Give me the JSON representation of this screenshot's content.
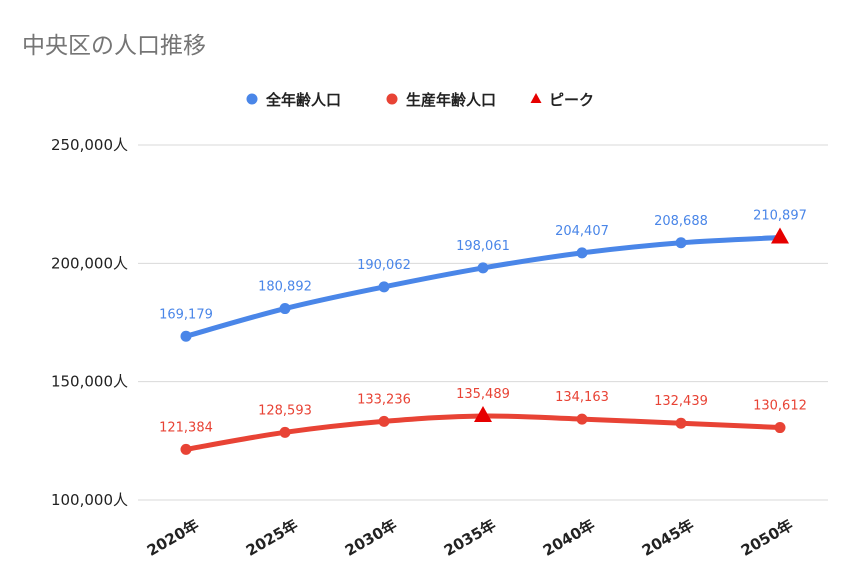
{
  "chart_data": {
    "type": "line",
    "title": "中央区の人口推移",
    "categories": [
      "2020年",
      "2025年",
      "2030年",
      "2035年",
      "2040年",
      "2045年",
      "2050年"
    ],
    "series": [
      {
        "name": "全年齢人口",
        "color": "#4a86e8",
        "values": [
          169179,
          180892,
          190062,
          198061,
          204407,
          208688,
          210897
        ],
        "labels": [
          "169,179",
          "180,892",
          "190,062",
          "198,061",
          "204,407",
          "208,688",
          "210,897"
        ],
        "peak_index": 6
      },
      {
        "name": "生産年齢人口",
        "color": "#e84335",
        "values": [
          121384,
          128593,
          133236,
          135489,
          134163,
          132439,
          130612
        ],
        "labels": [
          "121,384",
          "128,593",
          "133,236",
          "135,489",
          "134,163",
          "132,439",
          "130,612"
        ],
        "peak_index": 3
      }
    ],
    "peak_legend": {
      "name": "ピーク",
      "color": "#e60000",
      "icon": "triangle-icon"
    },
    "ylim": [
      100000,
      250000
    ],
    "yticks": [
      100000,
      150000,
      200000,
      250000
    ],
    "ytick_labels": [
      "100,000人",
      "150,000人",
      "200,000人",
      "250,000人"
    ],
    "grid": true,
    "legend_position": "top"
  }
}
